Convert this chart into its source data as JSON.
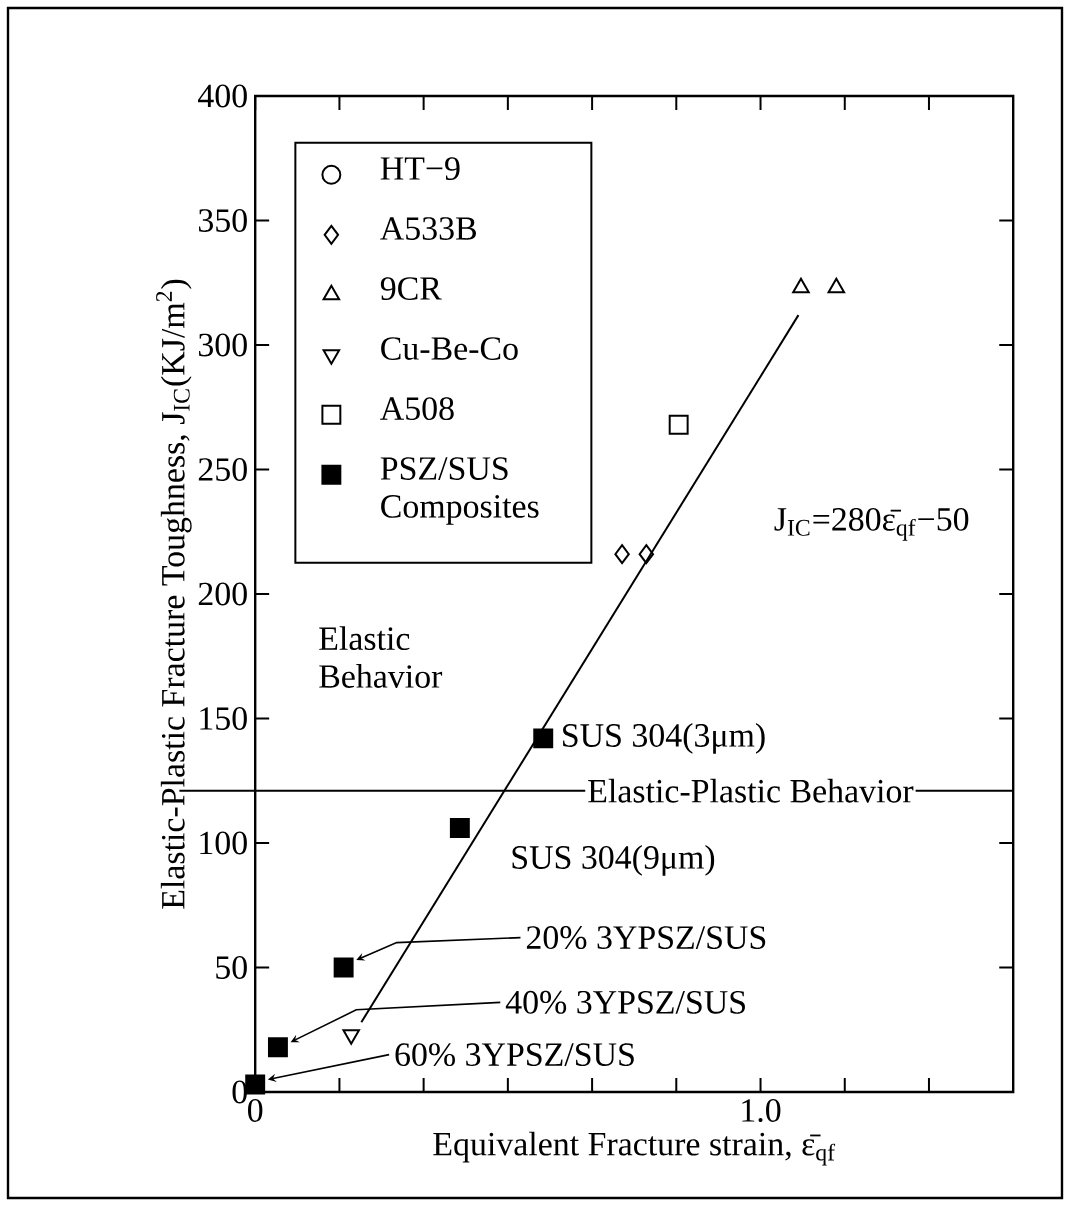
{
  "chart_data": {
    "type": "scatter",
    "xlabel": "Equivalent Fracture strain, ε̄$_{qf}$",
    "ylabel": "Elastic-Plastic Fracture Toughness, J$_{IC}$(KJ/m$^{2}$)",
    "xlim": [
      0,
      1.5
    ],
    "ylim": [
      0,
      400
    ],
    "xticks": [
      0,
      {
        "value": 0.1667,
        "label": null
      },
      {
        "value": 0.3333,
        "label": null
      },
      {
        "value": 0.5,
        "label": null
      },
      {
        "value": 0.6667,
        "label": null
      },
      {
        "value": 0.8333,
        "label": null
      },
      {
        "value": 1,
        "label": "1.0"
      },
      {
        "value": 1.1667,
        "label": null
      },
      {
        "value": 1.3333,
        "label": null
      }
    ],
    "yticks": [
      0,
      50,
      100,
      150,
      200,
      250,
      300,
      350,
      400
    ],
    "legend": "top left",
    "series": [
      {
        "name": "HT−9",
        "color": "#000000",
        "marker": "circle"
      },
      {
        "name": "A533B",
        "color": "#000000",
        "marker": "diamond",
        "x": [
          0.726,
          0.774
        ],
        "values": [
          216,
          216
        ]
      },
      {
        "name": "9CR",
        "color": "#000000",
        "marker": "triangle",
        "x": [
          1.08,
          1.15
        ],
        "values": [
          323,
          323
        ]
      },
      {
        "name": "Cu-Be-Co",
        "color": "#000000",
        "marker": "triangle-down",
        "x": [
          0.19
        ],
        "values": [
          23
        ]
      },
      {
        "name": "A508",
        "color": "#000000",
        "marker": "square",
        "x": [
          0.838
        ],
        "values": [
          268
        ]
      },
      {
        "name": "PSZ/SUS Composites",
        "color": "#000000",
        "marker": "square-filled",
        "x": [
          0,
          0.045,
          0.175,
          0.405,
          0.57
        ],
        "values": [
          3,
          18,
          50,
          106,
          142
        ]
      },
      {
        "type": "line",
        "color": "#000000",
        "marker": "none",
        "line_style": "solid",
        "x": [
          0.21,
          1.075
        ],
        "values": [
          28,
          312
        ]
      }
    ],
    "ref_lines": [
      {
        "axis": "y",
        "value": 121,
        "label": "Elastic-Plastic Behavior",
        "color": "#000000"
      }
    ],
    "annotations": [
      "Elastic Behavior",
      "J$_{IC}$=280ε̄$_{qf}$−50",
      {
        "text": "SUS 304(3μm)",
        "x": 0.57,
        "y": 142
      },
      {
        "text": "SUS 304(9μm)",
        "x": 0.405,
        "y": 106
      },
      "20% 3YPSZ/SUS",
      "40% 3YPSZ/SUS",
      "60% 3YPSZ/SUS"
    ]
  }
}
